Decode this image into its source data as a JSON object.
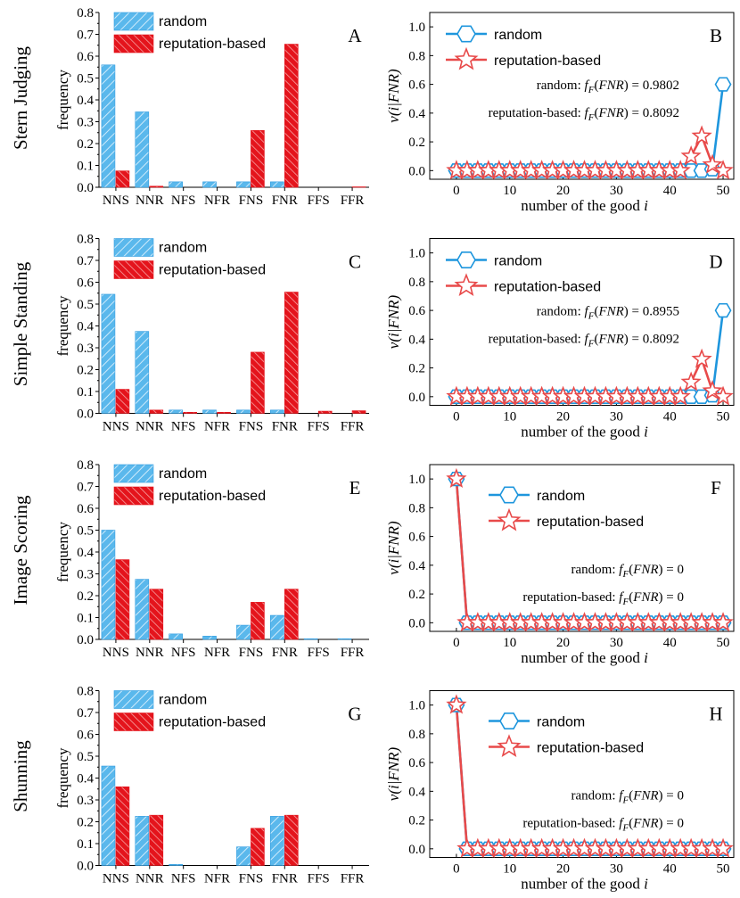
{
  "figure": {
    "rows": [
      {
        "label": "Stern Judging",
        "bar_panel": 0,
        "line_panel": 0
      },
      {
        "label": "Simple Standing",
        "bar_panel": 1,
        "line_panel": 1
      },
      {
        "label": "Image Scoring",
        "bar_panel": 2,
        "line_panel": 2
      },
      {
        "label": "Shunning",
        "bar_panel": 3,
        "line_panel": 3
      }
    ],
    "colors": {
      "random_fill": "#5ab8ec",
      "random_stroke": "#2f9be0",
      "reputation_fill": "#e4141c",
      "reputation_stroke": "#e4141c",
      "line_random": "#1e96dd",
      "line_reputation": "#e84a4a"
    },
    "icons": {
      "random_marker": "hexagon-icon",
      "reputation_marker": "star-icon"
    }
  },
  "chart_data": [
    {
      "type": "bar",
      "panel": "A",
      "categories": [
        "NNS",
        "NNR",
        "NFS",
        "NFR",
        "FNS",
        "FNR",
        "FFS",
        "FFR"
      ],
      "ylabel": "frequency",
      "ylim": [
        0,
        0.8
      ],
      "yticks": [
        "0.0",
        "0.1",
        "0.2",
        "0.3",
        "0.4",
        "0.5",
        "0.6",
        "0.7",
        "0.8"
      ],
      "legend_position": "top-left",
      "series": [
        {
          "name": "random",
          "values": [
            0.56,
            0.345,
            0.025,
            0.025,
            0.025,
            0.025,
            0,
            0
          ]
        },
        {
          "name": "reputation-based",
          "values": [
            0.075,
            0.005,
            0.0,
            0.0,
            0.26,
            0.655,
            0.0,
            0.002
          ]
        }
      ]
    },
    {
      "type": "bar",
      "panel": "C",
      "categories": [
        "NNS",
        "NNR",
        "NFS",
        "NFR",
        "FNS",
        "FNR",
        "FFS",
        "FFR"
      ],
      "ylabel": "frequency",
      "ylim": [
        0,
        0.8
      ],
      "yticks": [
        "0.0",
        "0.1",
        "0.2",
        "0.3",
        "0.4",
        "0.5",
        "0.6",
        "0.7",
        "0.8"
      ],
      "legend_position": "top-left",
      "series": [
        {
          "name": "random",
          "values": [
            0.545,
            0.375,
            0.015,
            0.015,
            0.015,
            0.015,
            0,
            0
          ]
        },
        {
          "name": "reputation-based",
          "values": [
            0.11,
            0.015,
            0.005,
            0.005,
            0.28,
            0.555,
            0.01,
            0.012
          ]
        }
      ]
    },
    {
      "type": "bar",
      "panel": "E",
      "categories": [
        "NNS",
        "NNR",
        "NFS",
        "NFR",
        "FNS",
        "FNR",
        "FFS",
        "FFR"
      ],
      "ylabel": "frequency",
      "ylim": [
        0,
        0.8
      ],
      "yticks": [
        "0.0",
        "0.1",
        "0.2",
        "0.3",
        "0.4",
        "0.5",
        "0.6",
        "0.7",
        "0.8"
      ],
      "legend_position": "top-left",
      "series": [
        {
          "name": "random",
          "values": [
            0.5,
            0.275,
            0.025,
            0.015,
            0.065,
            0.11,
            0.003,
            0.003
          ]
        },
        {
          "name": "reputation-based",
          "values": [
            0.365,
            0.23,
            0.0,
            0.0,
            0.17,
            0.23,
            0.0,
            0.0
          ]
        }
      ]
    },
    {
      "type": "bar",
      "panel": "G",
      "categories": [
        "NNS",
        "NNR",
        "NFS",
        "NFR",
        "FNS",
        "FNR",
        "FFS",
        "FFR"
      ],
      "ylabel": "frequency",
      "ylim": [
        0,
        0.8
      ],
      "yticks": [
        "0.0",
        "0.1",
        "0.2",
        "0.3",
        "0.4",
        "0.5",
        "0.6",
        "0.7",
        "0.8"
      ],
      "legend_position": "top-left",
      "series": [
        {
          "name": "random",
          "values": [
            0.455,
            0.225,
            0.005,
            0.0,
            0.085,
            0.225,
            0.0,
            0.0
          ]
        },
        {
          "name": "reputation-based",
          "values": [
            0.36,
            0.23,
            0.0,
            0.0,
            0.17,
            0.23,
            0.0,
            0.0
          ]
        }
      ]
    },
    {
      "type": "line",
      "panel": "B",
      "xlabel_text": "number of the good ",
      "xlabel_italic": "i",
      "ylabel": "v(i|FNR)",
      "xlim": [
        -5,
        52
      ],
      "ylim": [
        -0.06,
        1.1
      ],
      "xticks": [
        0,
        10,
        20,
        30,
        40,
        50
      ],
      "yticks": [
        "0.0",
        "0.2",
        "0.4",
        "0.6",
        "0.8",
        "1.0"
      ],
      "legend_position": "top-left",
      "annotation_random_prefix": "random: ",
      "annotation_random_value": " = 0.9802",
      "annotation_reputation_prefix": "reputation-based: ",
      "annotation_reputation_value": " = 0.8092",
      "annotation_f": "f",
      "annotation_sub": "F",
      "annotation_arg": "FNR",
      "series": [
        {
          "name": "random",
          "x": [
            0,
            2,
            4,
            6,
            8,
            10,
            12,
            14,
            16,
            18,
            20,
            22,
            24,
            26,
            28,
            30,
            32,
            34,
            36,
            38,
            40,
            42,
            44,
            46,
            48,
            50
          ],
          "y": [
            0,
            0,
            0,
            0,
            0,
            0,
            0,
            0,
            0,
            0,
            0,
            0,
            0,
            0,
            0,
            0,
            0,
            0,
            0,
            0,
            0,
            0,
            0,
            0,
            0.01,
            0.6
          ]
        },
        {
          "name": "reputation-based",
          "x": [
            0,
            2,
            4,
            6,
            8,
            10,
            12,
            14,
            16,
            18,
            20,
            22,
            24,
            26,
            28,
            30,
            32,
            34,
            36,
            38,
            40,
            42,
            44,
            46,
            48,
            50
          ],
          "y": [
            0,
            0,
            0,
            0,
            0,
            0,
            0,
            0,
            0,
            0,
            0,
            0,
            0,
            0.0,
            0,
            0,
            0,
            0,
            0,
            0,
            0,
            0,
            0.1,
            0.24,
            0.04,
            0
          ]
        }
      ]
    },
    {
      "type": "line",
      "panel": "D",
      "xlabel_text": "number of the good ",
      "xlabel_italic": "i",
      "ylabel": "v(i|FNR)",
      "xlim": [
        -5,
        52
      ],
      "ylim": [
        -0.06,
        1.1
      ],
      "xticks": [
        0,
        10,
        20,
        30,
        40,
        50
      ],
      "yticks": [
        "0.0",
        "0.2",
        "0.4",
        "0.6",
        "0.8",
        "1.0"
      ],
      "legend_position": "top-left",
      "annotation_random_prefix": "random: ",
      "annotation_random_value": " = 0.8955",
      "annotation_reputation_prefix": "reputation-based: ",
      "annotation_reputation_value": " = 0.8092",
      "annotation_f": "f",
      "annotation_sub": "F",
      "annotation_arg": "FNR",
      "series": [
        {
          "name": "random",
          "x": [
            0,
            2,
            4,
            6,
            8,
            10,
            12,
            14,
            16,
            18,
            20,
            22,
            24,
            26,
            28,
            30,
            32,
            34,
            36,
            38,
            40,
            42,
            44,
            46,
            48,
            50
          ],
          "y": [
            0,
            0,
            0,
            0,
            0,
            0,
            0,
            0,
            0,
            0,
            0,
            0,
            0,
            0,
            0,
            0,
            0,
            0,
            0,
            0,
            0,
            0,
            0,
            0,
            0.01,
            0.6
          ]
        },
        {
          "name": "reputation-based",
          "x": [
            0,
            2,
            4,
            6,
            8,
            10,
            12,
            14,
            16,
            18,
            20,
            22,
            24,
            26,
            28,
            30,
            32,
            34,
            36,
            38,
            40,
            42,
            44,
            46,
            48,
            50
          ],
          "y": [
            0,
            0,
            0,
            0,
            0,
            0,
            0,
            0,
            0,
            0,
            0,
            0,
            0,
            0,
            0,
            0,
            0,
            0,
            0,
            0,
            0,
            0,
            0.1,
            0.26,
            0.04,
            0
          ]
        }
      ]
    },
    {
      "type": "line",
      "panel": "F",
      "xlabel_text": "number of the good ",
      "xlabel_italic": "i",
      "ylabel": "v(i|FNR)",
      "xlim": [
        -5,
        52
      ],
      "ylim": [
        -0.06,
        1.1
      ],
      "xticks": [
        0,
        10,
        20,
        30,
        40,
        50
      ],
      "yticks": [
        "0.0",
        "0.2",
        "0.4",
        "0.6",
        "0.8",
        "1.0"
      ],
      "legend_position": "top-center",
      "annotation_random_prefix": "random: ",
      "annotation_random_value": " = 0",
      "annotation_reputation_prefix": "reputation-based: ",
      "annotation_reputation_value": " = 0",
      "annotation_f": "f",
      "annotation_sub": "F",
      "annotation_arg": "FNR",
      "series": [
        {
          "name": "random",
          "x": [
            0,
            2,
            4,
            6,
            8,
            10,
            12,
            14,
            16,
            18,
            20,
            22,
            24,
            26,
            28,
            30,
            32,
            34,
            36,
            38,
            40,
            42,
            44,
            46,
            48,
            50
          ],
          "y": [
            1,
            0,
            0,
            0,
            0,
            0,
            0,
            0,
            0,
            0,
            0,
            0,
            0,
            0,
            0,
            0,
            0,
            0,
            0,
            0,
            0,
            0,
            0,
            0,
            0,
            0
          ]
        },
        {
          "name": "reputation-based",
          "x": [
            0,
            2,
            4,
            6,
            8,
            10,
            12,
            14,
            16,
            18,
            20,
            22,
            24,
            26,
            28,
            30,
            32,
            34,
            36,
            38,
            40,
            42,
            44,
            46,
            48,
            50
          ],
          "y": [
            1,
            0,
            0,
            0,
            0,
            0,
            0,
            0,
            0,
            0,
            0,
            0,
            0,
            0,
            0,
            0,
            0,
            0,
            0,
            0,
            0,
            0,
            0,
            0,
            0,
            0
          ]
        }
      ]
    },
    {
      "type": "line",
      "panel": "H",
      "xlabel_text": "number of the good ",
      "xlabel_italic": "i",
      "ylabel": "v(i|FNR)",
      "xlim": [
        -5,
        52
      ],
      "ylim": [
        -0.06,
        1.1
      ],
      "xticks": [
        0,
        10,
        20,
        30,
        40,
        50
      ],
      "yticks": [
        "0.0",
        "0.2",
        "0.4",
        "0.6",
        "0.8",
        "1.0"
      ],
      "legend_position": "top-center",
      "annotation_random_prefix": "random: ",
      "annotation_random_value": " = 0",
      "annotation_reputation_prefix": "reputation-based: ",
      "annotation_reputation_value": " = 0",
      "annotation_f": "f",
      "annotation_sub": "F",
      "annotation_arg": "FNR",
      "series": [
        {
          "name": "random",
          "x": [
            0,
            2,
            4,
            6,
            8,
            10,
            12,
            14,
            16,
            18,
            20,
            22,
            24,
            26,
            28,
            30,
            32,
            34,
            36,
            38,
            40,
            42,
            44,
            46,
            48,
            50
          ],
          "y": [
            1,
            0,
            0,
            0,
            0,
            0,
            0,
            0,
            0,
            0,
            0,
            0,
            0,
            0,
            0,
            0,
            0,
            0,
            0,
            0,
            0,
            0,
            0,
            0,
            0,
            0
          ]
        },
        {
          "name": "reputation-based",
          "x": [
            0,
            2,
            4,
            6,
            8,
            10,
            12,
            14,
            16,
            18,
            20,
            22,
            24,
            26,
            28,
            30,
            32,
            34,
            36,
            38,
            40,
            42,
            44,
            46,
            48,
            50
          ],
          "y": [
            1,
            0,
            0,
            0,
            0,
            0,
            0,
            0,
            0,
            0,
            0,
            0,
            0,
            0,
            0,
            0,
            0,
            0,
            0,
            0,
            0,
            0,
            0,
            0,
            0,
            0
          ]
        }
      ]
    }
  ]
}
